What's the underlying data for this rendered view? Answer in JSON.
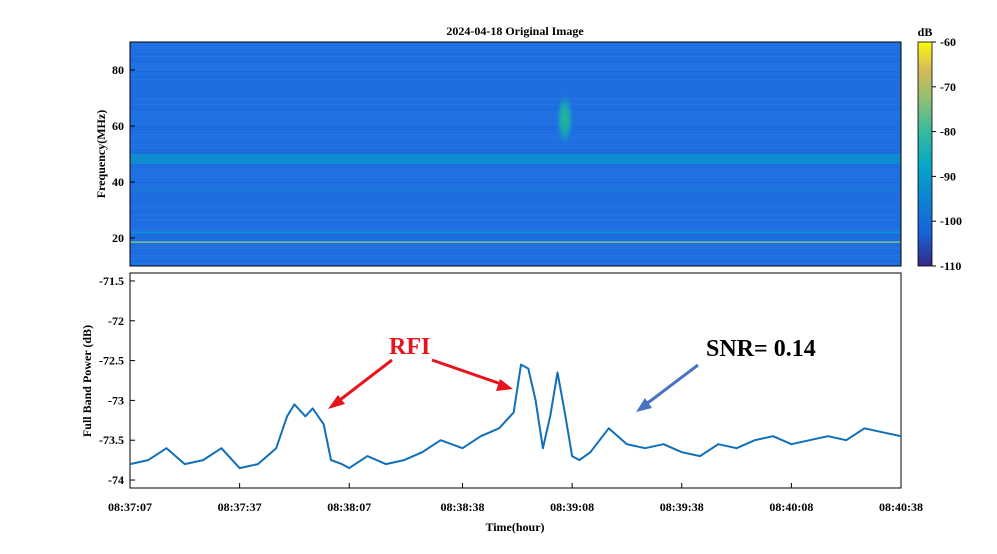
{
  "chart_data": [
    {
      "type": "heatmap",
      "title": "2024-04-18 Original Image",
      "ylabel": "Frequency(MHz)",
      "xlabel": "",
      "ylim": [
        10,
        90
      ],
      "yticks": [
        "20",
        "40",
        "60",
        "80"
      ],
      "colorbar": {
        "label": "dB",
        "range": [
          -110,
          -60
        ],
        "ticks": [
          "-60",
          "-70",
          "-80",
          "-90",
          "-100",
          "-110"
        ],
        "colormap": "parula"
      },
      "features": [
        {
          "kind": "horizontal band",
          "freq_mhz": [
            46.5,
            50
          ],
          "level_db": -93
        },
        {
          "kind": "horizontal line",
          "freq_mhz": 18.5,
          "level_db": -75
        },
        {
          "kind": "horizontal line",
          "freq_mhz": 22,
          "level_db": -92
        },
        {
          "kind": "horizontal line",
          "freq_mhz": 37,
          "level_db": -97
        },
        {
          "kind": "burst",
          "time": "08:39:06",
          "freq_mhz": [
            55,
            70
          ],
          "level_db": -88
        }
      ]
    },
    {
      "type": "line",
      "xlabel": "Time(hour)",
      "ylabel": "Full Band Power (dB)",
      "ylim": [
        -74.1,
        -71.4
      ],
      "yticks": [
        "-71.5",
        "-72",
        "-72.5",
        "-73",
        "-73.5",
        "-74"
      ],
      "xticks": [
        "08:37:07",
        "08:37:37",
        "08:38:07",
        "08:38:38",
        "08:39:08",
        "08:39:38",
        "08:40:08",
        "08:40:38"
      ],
      "series": [
        {
          "color": "#0f6fb8",
          "x": [
            "08:37:07",
            "08:37:12",
            "08:37:17",
            "08:37:22",
            "08:37:27",
            "08:37:32",
            "08:37:37",
            "08:37:42",
            "08:37:47",
            "08:37:50",
            "08:37:52",
            "08:37:55",
            "08:37:57",
            "08:38:00",
            "08:38:02",
            "08:38:05",
            "08:38:07",
            "08:38:12",
            "08:38:17",
            "08:38:22",
            "08:38:27",
            "08:38:32",
            "08:38:38",
            "08:38:43",
            "08:38:48",
            "08:38:52",
            "08:38:54",
            "08:38:56",
            "08:38:58",
            "08:39:00",
            "08:39:02",
            "08:39:04",
            "08:39:06",
            "08:39:08",
            "08:39:10",
            "08:39:13",
            "08:39:18",
            "08:39:23",
            "08:39:28",
            "08:39:33",
            "08:39:38",
            "08:39:43",
            "08:39:48",
            "08:39:53",
            "08:39:58",
            "08:40:03",
            "08:40:08",
            "08:40:13",
            "08:40:18",
            "08:40:23",
            "08:40:28",
            "08:40:33",
            "08:40:38"
          ],
          "y": [
            -73.8,
            -73.75,
            -73.6,
            -73.8,
            -73.75,
            -73.6,
            -73.85,
            -73.8,
            -73.6,
            -73.2,
            -73.05,
            -73.2,
            -73.1,
            -73.3,
            -73.75,
            -73.8,
            -73.85,
            -73.7,
            -73.8,
            -73.75,
            -73.65,
            -73.5,
            -73.6,
            -73.45,
            -73.35,
            -73.15,
            -72.55,
            -72.6,
            -73.0,
            -73.6,
            -73.2,
            -72.65,
            -73.15,
            -73.7,
            -73.75,
            -73.65,
            -73.35,
            -73.55,
            -73.6,
            -73.55,
            -73.65,
            -73.7,
            -73.55,
            -73.6,
            -73.5,
            -73.45,
            -73.55,
            -73.5,
            -73.45,
            -73.5,
            -73.35,
            -73.4,
            -73.45
          ]
        }
      ],
      "annotations": [
        {
          "text": "RFI",
          "color": "#e8141b",
          "points_to": [
            "08:38:02",
            "08:38:56"
          ]
        },
        {
          "text": "SNR= 0.14",
          "color": "#000000",
          "points_to": [
            "08:39:25"
          ]
        }
      ]
    }
  ]
}
